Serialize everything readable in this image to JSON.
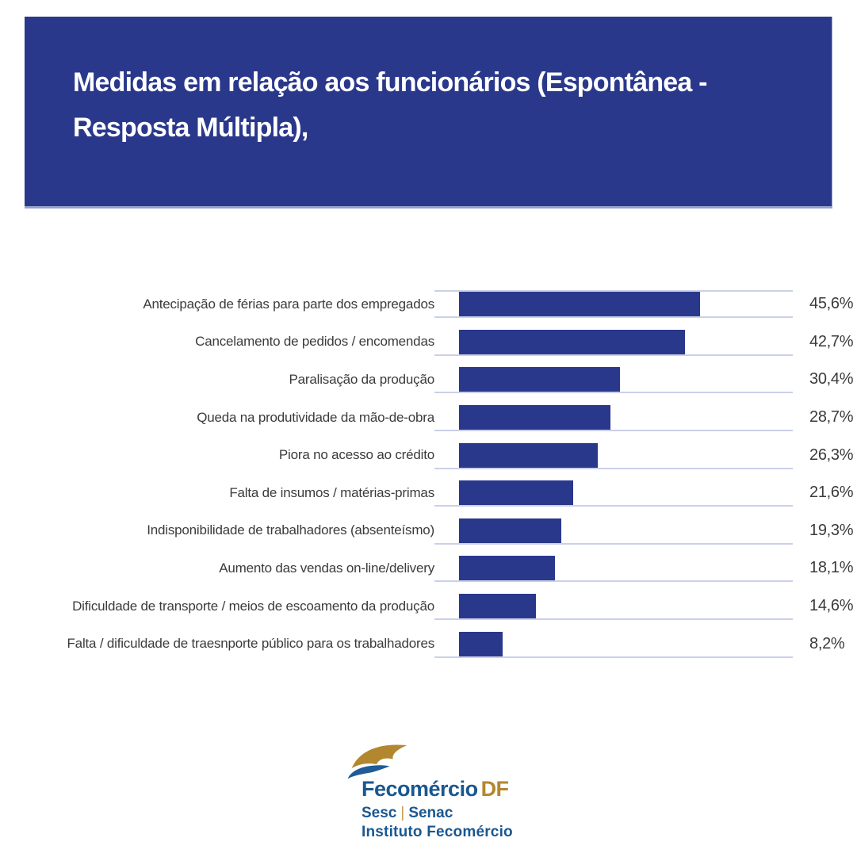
{
  "header": {
    "title": "Medidas em relação aos funcionários (Espontânea - Resposta Múltipla),",
    "title_line1": "Medidas em relação aos funcionários (Espontânea -",
    "title_line2": "Resposta Múltipla),",
    "background": "#2A388C",
    "text_color": "#FFFFFF"
  },
  "chart_data": {
    "type": "bar",
    "orientation": "horizontal",
    "title": "Medidas em relação aos funcionários (Espontânea - Resposta Múltipla),",
    "categories": [
      "Antecipação de férias para parte dos empregados",
      "Cancelamento de pedidos / encomendas",
      "Paralisação da produção",
      "Queda na produtividade da mão-de-obra",
      "Piora no acesso ao crédito",
      "Falta de insumos / matérias-primas",
      "Indisponibilidade de trabalhadores (absenteísmo)",
      "Aumento das vendas on-line/delivery",
      "Dificuldade de transporte / meios de escoamento da produção",
      "Falta / dificuldade de traesnporte público para os trabalhadores"
    ],
    "values": [
      45.6,
      42.7,
      30.4,
      28.7,
      26.3,
      21.6,
      19.3,
      18.1,
      14.6,
      8.2
    ],
    "value_labels": [
      "45,6%",
      "42,7%",
      "30,4%",
      "28,7%",
      "26,3%",
      "21,6%",
      "19,3%",
      "18,1%",
      "14,6%",
      "8,2%"
    ],
    "xlim": [
      0,
      50
    ],
    "grid": false,
    "legend": "none",
    "bar_color": "#2A388C",
    "label_color": "#3B3B3B"
  },
  "footer_logo": {
    "brand": "Fecomércio",
    "brand_suffix": "DF",
    "line2_left": "Sesc",
    "line2_divider": "|",
    "line2_right": "Senac",
    "line3": "Instituto Fecomércio",
    "blue": "#1A5790",
    "gold": "#B3872F"
  }
}
